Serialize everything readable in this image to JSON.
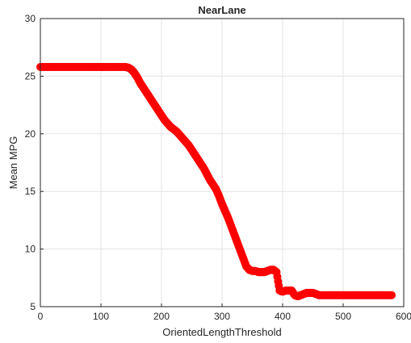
{
  "chart_data": {
    "type": "scatter",
    "title": "NearLane",
    "xlabel": "OrientedLengthThreshold",
    "ylabel": "Mean MPG",
    "xlim": [
      0,
      600
    ],
    "ylim": [
      5,
      30
    ],
    "xticks": [
      0,
      100,
      200,
      300,
      400,
      500,
      600
    ],
    "yticks": [
      5,
      10,
      15,
      20,
      25,
      30
    ],
    "grid": true,
    "marker_color": "#ff0000",
    "series": [
      {
        "x": [
          0,
          10,
          20,
          30,
          40,
          50,
          60,
          70,
          80,
          90,
          100,
          110,
          120,
          130,
          140,
          145,
          150,
          155,
          160,
          165,
          170,
          175,
          180,
          185,
          190,
          195,
          200,
          205,
          210,
          215,
          220,
          225,
          230,
          235,
          240,
          245,
          250,
          255,
          260,
          265,
          270,
          275,
          280,
          285,
          290,
          295,
          300,
          305,
          310,
          315,
          320,
          325,
          330,
          335,
          340,
          345,
          350,
          355,
          360,
          365,
          370,
          375,
          380,
          385,
          390,
          395,
          400,
          405,
          410,
          415,
          420,
          425,
          430,
          435,
          440,
          445,
          450,
          455,
          460,
          470,
          480,
          490,
          500,
          510,
          520,
          530,
          540,
          550,
          560,
          570,
          580
        ],
        "y": [
          25.8,
          25.8,
          25.8,
          25.8,
          25.8,
          25.8,
          25.8,
          25.8,
          25.8,
          25.8,
          25.8,
          25.8,
          25.8,
          25.8,
          25.8,
          25.75,
          25.6,
          25.3,
          24.9,
          24.4,
          24.0,
          23.6,
          23.2,
          22.8,
          22.4,
          22.0,
          21.6,
          21.2,
          20.9,
          20.6,
          20.4,
          20.2,
          19.9,
          19.6,
          19.3,
          19.0,
          18.6,
          18.2,
          17.8,
          17.4,
          17.0,
          16.5,
          16.0,
          15.6,
          15.2,
          14.6,
          13.9,
          13.3,
          12.7,
          12.0,
          11.3,
          10.6,
          9.9,
          9.2,
          8.5,
          8.2,
          8.1,
          8.1,
          8.0,
          8.0,
          8.0,
          8.1,
          8.2,
          8.2,
          8.0,
          6.4,
          6.3,
          6.4,
          6.4,
          6.4,
          6.0,
          5.9,
          6.0,
          6.1,
          6.2,
          6.2,
          6.2,
          6.1,
          6.0,
          6.0,
          6.0,
          6.0,
          6.0,
          6.0,
          6.0,
          6.0,
          6.0,
          6.0,
          6.0,
          6.0,
          6.0
        ]
      }
    ]
  }
}
